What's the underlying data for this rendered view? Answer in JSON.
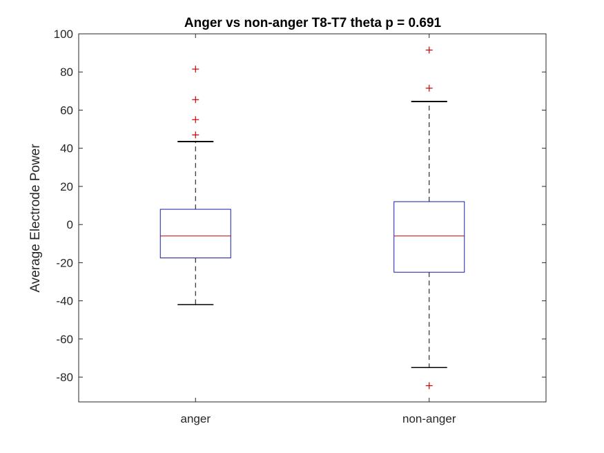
{
  "chart_data": {
    "type": "boxplot",
    "title": "Anger vs non-anger T8-T7 theta p = 0.691",
    "xlabel": "",
    "ylabel": "Average Electrode Power",
    "ylim": [
      -93,
      100
    ],
    "yticks": [
      -80,
      -60,
      -40,
      -20,
      0,
      20,
      40,
      60,
      80,
      100
    ],
    "ytick_labels": [
      "-80",
      "-60",
      "-40",
      "-20",
      "0",
      "20",
      "40",
      "60",
      "80",
      "100"
    ],
    "grid": false,
    "categories": [
      "anger",
      "non-anger"
    ],
    "boxes": [
      {
        "category": "anger",
        "whisker_low": -42,
        "q1": -17.5,
        "median": -6,
        "q3": 8,
        "whisker_high": 43.5,
        "outliers": [
          47,
          55,
          65.5,
          81.5
        ]
      },
      {
        "category": "non-anger",
        "whisker_low": -75,
        "q1": -25,
        "median": -6,
        "q3": 12,
        "whisker_high": 64.5,
        "outliers": [
          -84.5,
          71.5,
          91.5
        ]
      }
    ],
    "colors": {
      "box": "#1a1aa6",
      "median": "#cc0000",
      "outlier": "#cc0000",
      "whisker": "#000000",
      "axis": "#262626"
    }
  }
}
